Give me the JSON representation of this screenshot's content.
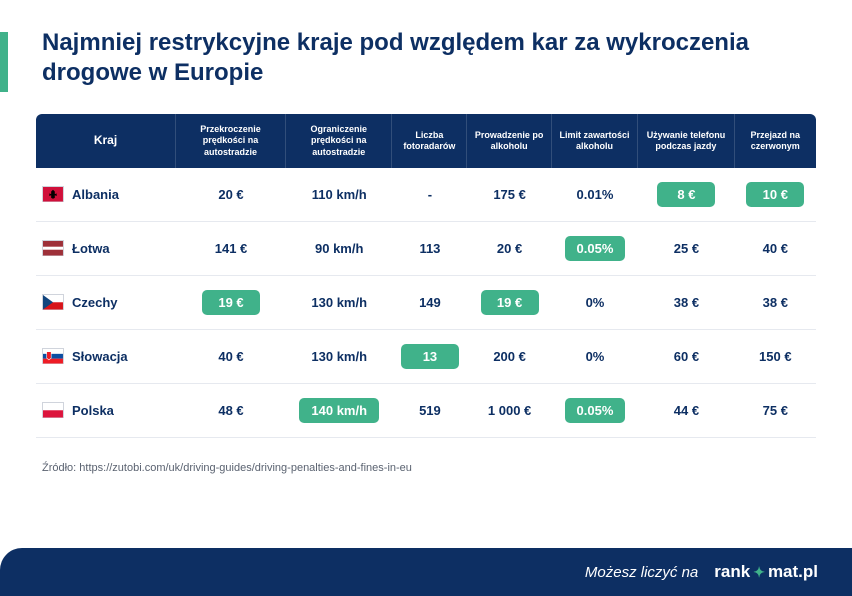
{
  "title": "Najmniej restrykcyjne kraje pod względem kar za wykroczenia drogowe w Europie",
  "colors": {
    "primary": "#0d2f63",
    "accent": "#40b28a",
    "divider": "#e6e9ef",
    "source_text": "#5a6270",
    "white": "#ffffff"
  },
  "columns": [
    "Kraj",
    "Przekroczenie prędkości na autostradzie",
    "Ograniczenie prędkości na autostradzie",
    "Liczba fotoradarów",
    "Prowadzenie po alkoholu",
    "Limit zawartości alkoholu",
    "Używanie telefonu podczas jazdy",
    "Przejazd na czerwonym"
  ],
  "rows": [
    {
      "country": "Albania",
      "flag_svg": "<svg viewBox='0 0 22 16'><rect width='22' height='16' fill='#d0103a'/><path d='M11 3 L9 5 L9 8 L7 7 L7 10 L9 9 L9 12 L11 13 L13 12 L13 9 L15 10 L15 7 L13 8 L13 5 Z' fill='#000'/></svg>",
      "cells": [
        {
          "text": "20 €",
          "hl": false
        },
        {
          "text": "110 km/h",
          "hl": false
        },
        {
          "text": "-",
          "hl": false
        },
        {
          "text": "175 €",
          "hl": false
        },
        {
          "text": "0.01%",
          "hl": false
        },
        {
          "text": "8 €",
          "hl": true
        },
        {
          "text": "10 €",
          "hl": true
        }
      ]
    },
    {
      "country": "Łotwa",
      "flag_svg": "<svg viewBox='0 0 22 16'><rect width='22' height='6.4' y='0' fill='#9e3039'/><rect width='22' height='3.2' y='6.4' fill='#fff'/><rect width='22' height='6.4' y='9.6' fill='#9e3039'/></svg>",
      "cells": [
        {
          "text": "141 €",
          "hl": false
        },
        {
          "text": "90 km/h",
          "hl": false
        },
        {
          "text": "113",
          "hl": false
        },
        {
          "text": "20 €",
          "hl": false
        },
        {
          "text": "0.05%",
          "hl": true
        },
        {
          "text": "25 €",
          "hl": false
        },
        {
          "text": "40 €",
          "hl": false
        }
      ]
    },
    {
      "country": "Czechy",
      "flag_svg": "<svg viewBox='0 0 22 16'><rect width='22' height='8' y='0' fill='#fff'/><rect width='22' height='8' y='8' fill='#d7141a'/><path d='M0 0 L11 8 L0 16 Z' fill='#11457e'/></svg>",
      "cells": [
        {
          "text": "19  €",
          "hl": true
        },
        {
          "text": "130 km/h",
          "hl": false
        },
        {
          "text": "149",
          "hl": false
        },
        {
          "text": "19 €",
          "hl": true
        },
        {
          "text": "0%",
          "hl": false
        },
        {
          "text": "38 €",
          "hl": false
        },
        {
          "text": "38 €",
          "hl": false
        }
      ]
    },
    {
      "country": "Słowacja",
      "flag_svg": "<svg viewBox='0 0 22 16'><rect width='22' height='5.33' y='0' fill='#fff'/><rect width='22' height='5.33' y='5.33' fill='#0b4ea2'/><rect width='22' height='5.34' y='10.66' fill='#ee1c25'/><path d='M4 3 L9 3 L9 10 L6.5 12 L4 10 Z' fill='#ee1c25' stroke='#fff' stroke-width='0.6'/></svg>",
      "cells": [
        {
          "text": "40 €",
          "hl": false
        },
        {
          "text": "130 km/h",
          "hl": false
        },
        {
          "text": "13",
          "hl": true
        },
        {
          "text": "200 €",
          "hl": false
        },
        {
          "text": "0%",
          "hl": false
        },
        {
          "text": "60 €",
          "hl": false
        },
        {
          "text": "150 €",
          "hl": false
        }
      ]
    },
    {
      "country": "Polska",
      "flag_svg": "<svg viewBox='0 0 22 16'><rect width='22' height='8' y='0' fill='#fff'/><rect width='22' height='8' y='8' fill='#dc143c'/></svg>",
      "cells": [
        {
          "text": "48 €",
          "hl": false
        },
        {
          "text": "140 km/h",
          "hl": true
        },
        {
          "text": "519",
          "hl": false
        },
        {
          "text": "1 000 €",
          "hl": false
        },
        {
          "text": "0.05%",
          "hl": true
        },
        {
          "text": "44 €",
          "hl": false
        },
        {
          "text": "75 €",
          "hl": false
        }
      ]
    }
  ],
  "source": "Źródło: https://zutobi.com/uk/driving-guides/driving-penalties-and-fines-in-eu",
  "footer": {
    "text": "Możesz liczyć na",
    "brand_pre": "rank",
    "brand_post": "mat.pl"
  }
}
